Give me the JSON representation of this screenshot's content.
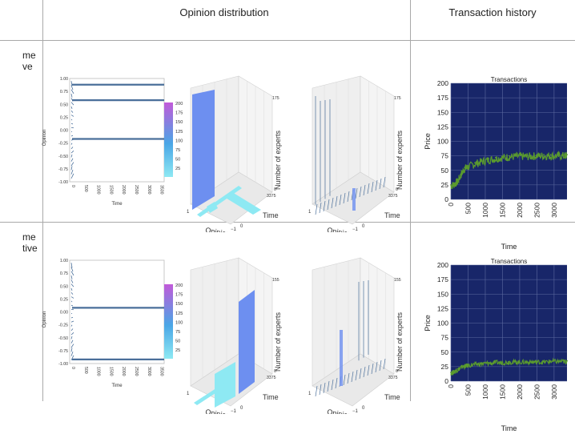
{
  "headers": {
    "opinion_distribution": "Opinion distribution",
    "transaction_history": "Transaction history"
  },
  "rows": [
    {
      "label_line1": "me",
      "label_line2": "ve"
    },
    {
      "label_line1": "me",
      "label_line2": "tive"
    }
  ],
  "colors": {
    "cyan_low": "#8ee9f3",
    "purple_high": "#c15ad9",
    "wall_blue": "#6d8ff0",
    "trace_blue": "#4a6f9a",
    "navy_bg": "#182669",
    "price_green": "#5a9a2e"
  },
  "line_plot": {
    "y_label": "Opinion",
    "x_label": "Time",
    "y_ticks": [
      "1.00",
      "0.75",
      "0.50",
      "0.25",
      "0.00",
      "-0.25",
      "-0.50",
      "-0.75",
      "-1.00"
    ],
    "x_ticks": [
      "0",
      "500",
      "1000",
      "1500",
      "2000",
      "2500",
      "3000",
      "3500"
    ]
  },
  "colorbar": {
    "ticks": [
      "200",
      "175",
      "150",
      "125",
      "100",
      "75",
      "50",
      "25"
    ]
  },
  "surface_3d": {
    "x_label": "Opinion",
    "y_label": "Time",
    "z_label": "Number of experts",
    "x_tick_pos": "1",
    "x_tick_neg": "−1",
    "y_tick_0": "0",
    "y_tick_max": "3375",
    "z_tick_0": "0"
  },
  "surface_z_max": [
    "175",
    "155"
  ],
  "chart_data": [
    {
      "type": "line",
      "title": "Transactions",
      "xlabel": "Time",
      "ylabel": "Price",
      "xlim": [
        0,
        3375
      ],
      "ylim": [
        0,
        200
      ],
      "x_ticks": [
        "0",
        "500",
        "1000",
        "1500",
        "2000",
        "2500",
        "3000"
      ],
      "y_ticks": [
        "0",
        "25",
        "50",
        "75",
        "100",
        "125",
        "150",
        "175",
        "200"
      ],
      "grid": true,
      "series": [
        {
          "name": "price",
          "x": [
            0,
            100,
            200,
            300,
            400,
            500,
            700,
            900,
            1100,
            1300,
            1500,
            1700,
            1900,
            2100,
            2300,
            2500,
            2700,
            2900,
            3100,
            3300,
            3375
          ],
          "values": [
            25,
            28,
            33,
            45,
            55,
            58,
            63,
            67,
            70,
            72,
            74,
            75,
            76,
            76,
            76,
            77,
            77,
            77,
            77,
            77,
            77
          ]
        }
      ]
    },
    {
      "type": "line",
      "title": "Transactions",
      "xlabel": "Time",
      "ylabel": "Price",
      "xlim": [
        0,
        3375
      ],
      "ylim": [
        0,
        200
      ],
      "x_ticks": [
        "0",
        "500",
        "1000",
        "1500",
        "2000",
        "2500",
        "3000"
      ],
      "y_ticks": [
        "0",
        "25",
        "50",
        "75",
        "100",
        "125",
        "150",
        "175",
        "200"
      ],
      "grid": true,
      "series": [
        {
          "name": "price",
          "x": [
            0,
            100,
            200,
            300,
            400,
            500,
            700,
            900,
            1100,
            1300,
            1500,
            1700,
            1900,
            2100,
            2300,
            2500,
            2700,
            2900,
            3100,
            3300,
            3375
          ],
          "values": [
            15,
            17,
            21,
            25,
            27,
            28,
            30,
            31,
            32,
            33,
            33,
            34,
            34,
            34,
            34,
            34,
            34,
            35,
            35,
            35,
            35
          ]
        }
      ]
    }
  ]
}
